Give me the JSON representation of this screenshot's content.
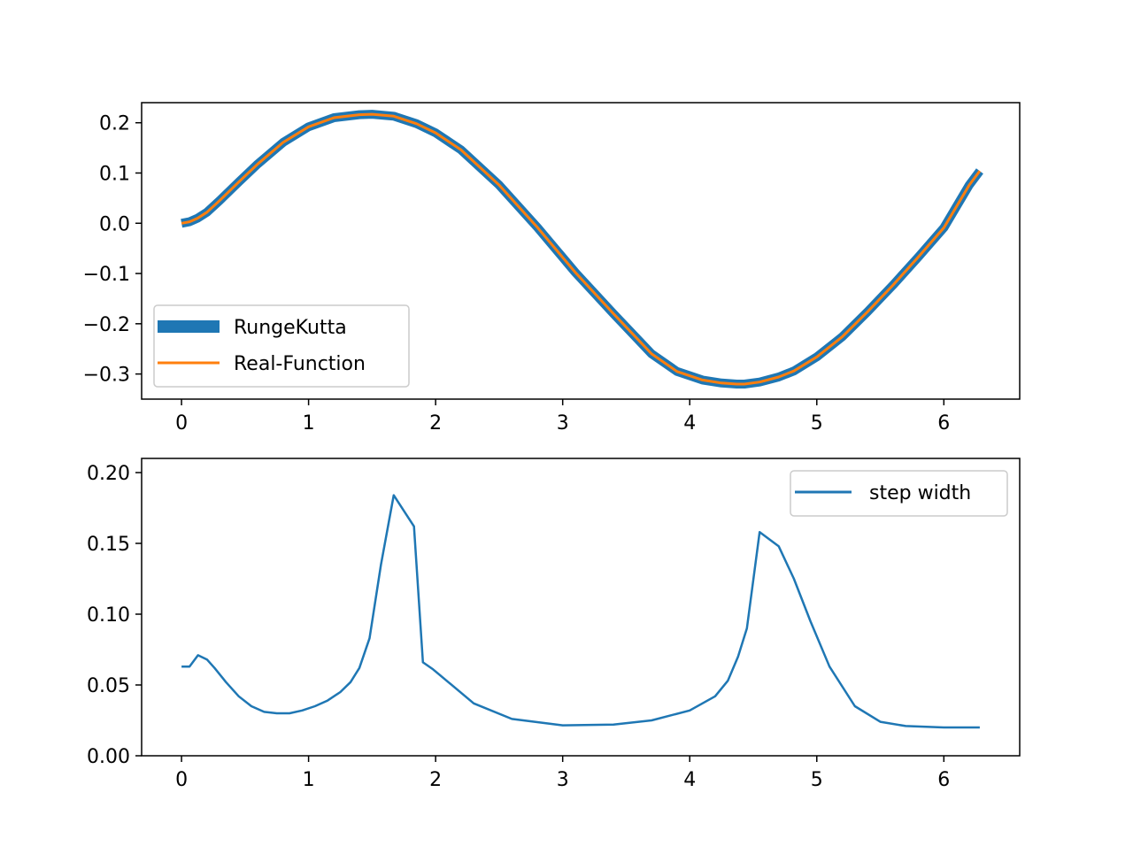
{
  "chart_data": [
    {
      "type": "line",
      "xlim": [
        -0.314,
        6.597
      ],
      "ylim": [
        -0.35,
        0.24
      ],
      "x_ticks": [
        0,
        1,
        2,
        3,
        4,
        5,
        6
      ],
      "y_ticks": [
        0.2,
        0.1,
        0.0,
        -0.1,
        -0.2,
        -0.3
      ],
      "x_tick_labels": [
        "0",
        "1",
        "2",
        "3",
        "4",
        "5",
        "6"
      ],
      "y_tick_labels": [
        "0.2",
        "0.1",
        "0.0",
        "−0.1",
        "−0.2",
        "−0.3"
      ],
      "grid": false,
      "legend": "lower-left",
      "series": [
        {
          "name": "RungeKutta",
          "color": "#1f77b4",
          "x": [
            0,
            0.063,
            0.126,
            0.2,
            0.3,
            0.45,
            0.6,
            0.8,
            1.0,
            1.2,
            1.4,
            1.5,
            1.67,
            1.85,
            2.0,
            2.2,
            2.5,
            2.8,
            3.1,
            3.4,
            3.7,
            3.9,
            4.1,
            4.25,
            4.37,
            4.43,
            4.55,
            4.7,
            4.82,
            5.0,
            5.2,
            5.4,
            5.6,
            5.8,
            6.0,
            6.2,
            6.283
          ],
          "y": [
            0.0,
            0.003,
            0.01,
            0.022,
            0.045,
            0.082,
            0.118,
            0.161,
            0.192,
            0.21,
            0.216,
            0.217,
            0.213,
            0.198,
            0.18,
            0.146,
            0.076,
            -0.008,
            -0.098,
            -0.18,
            -0.26,
            -0.295,
            -0.312,
            -0.318,
            -0.32,
            -0.32,
            -0.316,
            -0.306,
            -0.294,
            -0.266,
            -0.226,
            -0.176,
            -0.123,
            -0.067,
            -0.009,
            0.076,
            0.104
          ]
        },
        {
          "name": "Real-Function",
          "color": "#ff7f0e",
          "x": [
            0,
            0.063,
            0.126,
            0.2,
            0.3,
            0.45,
            0.6,
            0.8,
            1.0,
            1.2,
            1.4,
            1.5,
            1.67,
            1.85,
            2.0,
            2.2,
            2.5,
            2.8,
            3.1,
            3.4,
            3.7,
            3.9,
            4.1,
            4.25,
            4.37,
            4.43,
            4.55,
            4.7,
            4.82,
            5.0,
            5.2,
            5.4,
            5.6,
            5.8,
            6.0,
            6.2,
            6.283
          ],
          "y": [
            0.0,
            0.003,
            0.01,
            0.022,
            0.045,
            0.082,
            0.118,
            0.161,
            0.192,
            0.21,
            0.216,
            0.217,
            0.213,
            0.198,
            0.18,
            0.146,
            0.076,
            -0.008,
            -0.098,
            -0.18,
            -0.26,
            -0.295,
            -0.312,
            -0.318,
            -0.32,
            -0.32,
            -0.316,
            -0.306,
            -0.294,
            -0.266,
            -0.226,
            -0.176,
            -0.123,
            -0.067,
            -0.009,
            0.076,
            0.104
          ]
        }
      ]
    },
    {
      "type": "line",
      "xlim": [
        -0.314,
        6.597
      ],
      "ylim": [
        0.0,
        0.21
      ],
      "x_ticks": [
        0,
        1,
        2,
        3,
        4,
        5,
        6
      ],
      "y_ticks": [
        0.2,
        0.15,
        0.1,
        0.05,
        0.0
      ],
      "x_tick_labels": [
        "0",
        "1",
        "2",
        "3",
        "4",
        "5",
        "6"
      ],
      "y_tick_labels": [
        "0.20",
        "0.15",
        "0.10",
        "0.05",
        "0.00"
      ],
      "grid": false,
      "legend": "upper-right",
      "series": [
        {
          "name": "step width",
          "color": "#1f77b4",
          "x": [
            0,
            0.063,
            0.13,
            0.2,
            0.26,
            0.35,
            0.45,
            0.55,
            0.65,
            0.75,
            0.85,
            0.95,
            1.05,
            1.15,
            1.25,
            1.33,
            1.4,
            1.48,
            1.57,
            1.67,
            1.83,
            1.9,
            1.98,
            2.1,
            2.3,
            2.6,
            3.0,
            3.4,
            3.7,
            4.0,
            4.2,
            4.3,
            4.38,
            4.45,
            4.55,
            4.7,
            4.82,
            4.95,
            5.1,
            5.3,
            5.5,
            5.7,
            6.0,
            6.283
          ],
          "y": [
            0.063,
            0.063,
            0.071,
            0.068,
            0.062,
            0.052,
            0.042,
            0.035,
            0.031,
            0.03,
            0.03,
            0.032,
            0.035,
            0.039,
            0.045,
            0.052,
            0.062,
            0.083,
            0.135,
            0.184,
            0.162,
            0.066,
            0.061,
            0.052,
            0.037,
            0.026,
            0.0215,
            0.022,
            0.025,
            0.032,
            0.042,
            0.053,
            0.07,
            0.09,
            0.158,
            0.148,
            0.125,
            0.095,
            0.063,
            0.035,
            0.024,
            0.021,
            0.02,
            0.02
          ]
        }
      ]
    }
  ]
}
